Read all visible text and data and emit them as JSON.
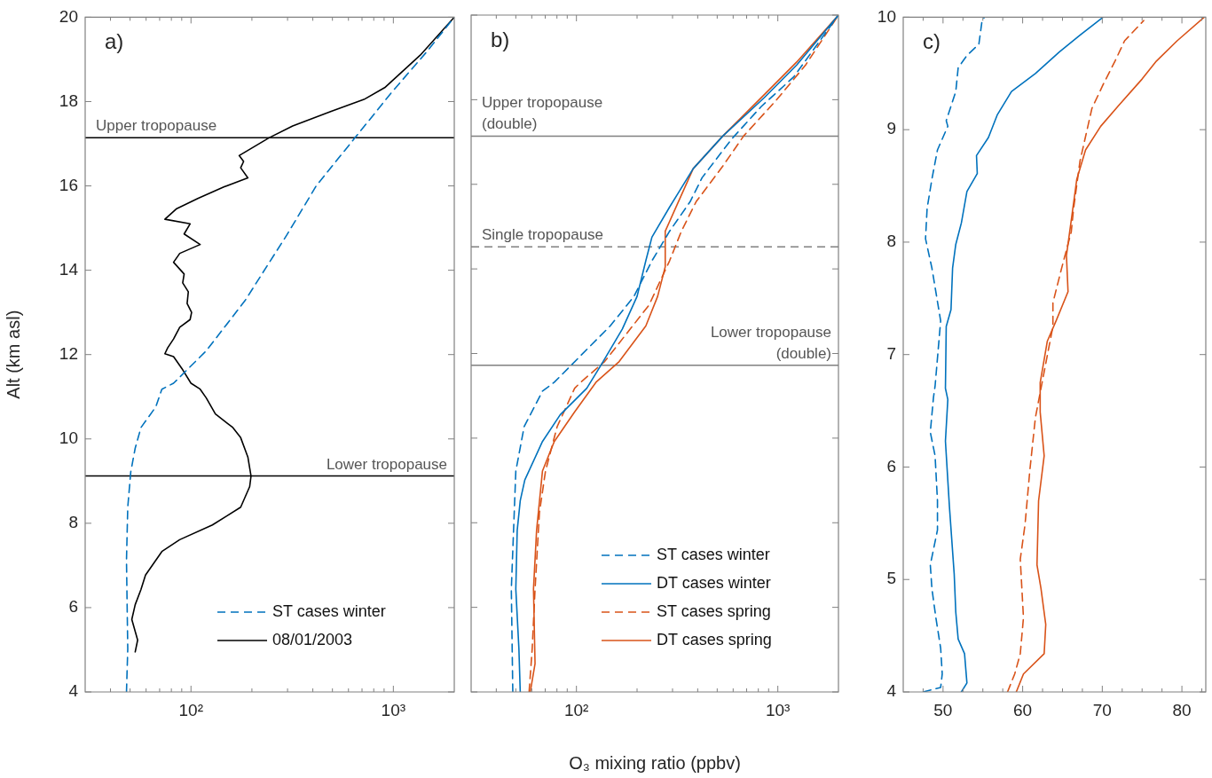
{
  "chart_data": [
    {
      "type": "line",
      "annotations": [
        "a)"
      ],
      "ylabel": "Alt (km asl)",
      "log": "x",
      "legend": "bottom right",
      "xlim": [
        30,
        2000
      ],
      "ylim": [
        4,
        20
      ],
      "xticks": [
        {
          "value": 40,
          "label": null
        },
        {
          "value": 50,
          "label": null
        },
        {
          "value": 60,
          "label": null
        },
        {
          "value": 70,
          "label": null
        },
        {
          "value": 80,
          "label": null
        },
        {
          "value": 90,
          "label": null
        },
        {
          "value": 100,
          "label": "10²"
        },
        {
          "value": 200,
          "label": null
        },
        {
          "value": 300,
          "label": null
        },
        {
          "value": 400,
          "label": null
        },
        {
          "value": 500,
          "label": null
        },
        {
          "value": 600,
          "label": null
        },
        {
          "value": 700,
          "label": null
        },
        {
          "value": 800,
          "label": null
        },
        {
          "value": 900,
          "label": null
        },
        {
          "value": 1000,
          "label": "10³"
        }
      ],
      "yticks": [
        4,
        6,
        8,
        10,
        12,
        14,
        16,
        18,
        20
      ],
      "ref_lines": [
        {
          "axis": "y",
          "value": 17.14,
          "label": "Upper tropopause",
          "color": "#000000",
          "line_style": "solid"
        },
        {
          "axis": "y",
          "value": 9.12,
          "label": "Lower tropopause",
          "color": "#000000",
          "line_style": "solid"
        }
      ],
      "series": [
        {
          "name": "ST cases winter",
          "color": "#0072bd",
          "line_style": "dashed",
          "x": [
            48,
            48.7,
            48,
            48.7,
            50.4,
            53,
            56.6,
            67,
            71.8,
            82,
            119,
            185,
            297,
            417,
            646,
            970,
            1455,
            2000
          ],
          "values": [
            4.0,
            5.02,
            7.12,
            8.38,
            9.22,
            9.78,
            10.27,
            10.76,
            11.18,
            11.32,
            12.09,
            13.28,
            14.83,
            16.01,
            17.14,
            18.19,
            19.17,
            20.0
          ]
        },
        {
          "name": "08/01/2003",
          "color": "#000000",
          "line_style": "solid",
          "x": [
            53,
            54.5,
            51,
            53,
            56.6,
            59.6,
            71.8,
            87.9,
            127.6,
            176,
            195,
            198,
            191,
            176,
            161,
            132,
            119,
            111,
            100,
            91,
            82,
            74.3,
            76.7,
            82,
            88,
            99,
            100.7,
            95.7,
            97,
            91,
            92.5,
            82,
            88,
            111,
            92.5,
            99,
            74.3,
            85,
            108,
            146,
            191,
            176,
            182,
            173,
            243,
            318,
            493,
            716,
            906,
            1358,
            2000
          ],
          "values": [
            4.95,
            5.23,
            5.72,
            6.07,
            6.43,
            6.77,
            7.33,
            7.61,
            7.96,
            8.38,
            8.87,
            9.12,
            9.57,
            10.03,
            10.27,
            10.59,
            10.97,
            11.18,
            11.32,
            11.64,
            11.95,
            12.02,
            12.16,
            12.37,
            12.65,
            12.83,
            13.0,
            13.21,
            13.49,
            13.7,
            13.91,
            14.19,
            14.4,
            14.61,
            14.86,
            15.1,
            15.21,
            15.46,
            15.7,
            15.98,
            16.19,
            16.43,
            16.58,
            16.72,
            17.14,
            17.42,
            17.77,
            18.05,
            18.33,
            19.1,
            20.0
          ]
        }
      ]
    },
    {
      "type": "line",
      "annotations": [
        "b)"
      ],
      "xlabel": "O₃ mixing ratio (ppbv)",
      "log": "x",
      "legend": "bottom right",
      "tick_labels": "x",
      "xlim": [
        30,
        2000
      ],
      "ylim": [
        4,
        20
      ],
      "xticks": [
        {
          "value": 40,
          "label": null
        },
        {
          "value": 50,
          "label": null
        },
        {
          "value": 60,
          "label": null
        },
        {
          "value": 70,
          "label": null
        },
        {
          "value": 80,
          "label": null
        },
        {
          "value": 90,
          "label": null
        },
        {
          "value": 100,
          "label": "10²"
        },
        {
          "value": 200,
          "label": null
        },
        {
          "value": 300,
          "label": null
        },
        {
          "value": 400,
          "label": null
        },
        {
          "value": 500,
          "label": null
        },
        {
          "value": 600,
          "label": null
        },
        {
          "value": 700,
          "label": null
        },
        {
          "value": 800,
          "label": null
        },
        {
          "value": 900,
          "label": null
        },
        {
          "value": 1000,
          "label": "10³"
        }
      ],
      "yticks": [
        4,
        6,
        8,
        10,
        12,
        14,
        16,
        18,
        20
      ],
      "ref_lines": [
        {
          "axis": "y",
          "value": 17.14,
          "label": "Upper tropopause\n(double)",
          "color": "#808080",
          "line_style": "solid"
        },
        {
          "axis": "y",
          "value": 14.52,
          "label": "Single tropopause",
          "color": "#808080",
          "line_style": "dashed"
        },
        {
          "axis": "y",
          "value": 11.72,
          "label": "Lower tropopause\n(double)",
          "color": "#808080",
          "line_style": "solid"
        }
      ],
      "series": [
        {
          "name": "ST cases winter",
          "color": "#0072bd",
          "line_style": "dashed",
          "x": [
            48.3,
            47.5,
            50,
            55,
            67.8,
            77.6,
            105,
            147,
            193,
            237,
            290,
            367,
            421,
            590,
            828,
            1200,
            2000
          ],
          "values": [
            4.0,
            6.43,
            9.22,
            10.27,
            11.11,
            11.32,
            11.95,
            12.65,
            13.35,
            14.19,
            14.89,
            15.59,
            16.16,
            17.07,
            17.84,
            18.54,
            20.0
          ]
        },
        {
          "name": "DT cases winter",
          "color": "#0072bd",
          "line_style": "solid",
          "x": [
            52.6,
            51.8,
            50,
            50.8,
            52.6,
            55.4,
            67.8,
            83,
            112.6,
            133,
            169,
            200,
            221,
            237,
            290,
            380,
            533,
            857,
            1241,
            2000
          ],
          "values": [
            4.0,
            5.02,
            6.43,
            7.82,
            8.52,
            9.01,
            9.92,
            10.55,
            11.18,
            11.74,
            12.58,
            13.35,
            14.19,
            14.75,
            15.46,
            16.37,
            17.14,
            18.05,
            18.82,
            20.0
          ]
        },
        {
          "name": "ST cases spring",
          "color": "#d95319",
          "line_style": "dashed",
          "x": [
            58.2,
            60.3,
            62.3,
            65.5,
            70.2,
            80.2,
            98,
            105,
            138,
            229,
            290,
            332,
            393,
            533,
            676,
            979,
            1374,
            2000
          ],
          "values": [
            4.0,
            5.02,
            6.43,
            8.24,
            9.22,
            10.27,
            11.18,
            11.32,
            11.81,
            13.14,
            14.19,
            14.89,
            15.59,
            16.43,
            17.14,
            17.98,
            18.82,
            20.0
          ]
        },
        {
          "name": "DT cases spring",
          "color": "#d95319",
          "line_style": "solid",
          "x": [
            59,
            62.3,
            61.2,
            63.4,
            67.8,
            77.6,
            98,
            125,
            163,
            221,
            253,
            276,
            276,
            380,
            533,
            857,
            1241,
            2000
          ],
          "values": [
            4.0,
            4.67,
            6.43,
            7.82,
            9.22,
            9.92,
            10.62,
            11.32,
            11.81,
            12.65,
            13.35,
            14.05,
            14.89,
            16.37,
            17.14,
            18.12,
            18.89,
            20.0
          ]
        }
      ]
    },
    {
      "type": "line",
      "annotations": [
        "c)"
      ],
      "xlim": [
        45,
        83
      ],
      "ylim": [
        4,
        10
      ],
      "xticks": [
        {
          "value": 47.5,
          "label": null
        },
        50,
        {
          "value": 52.5,
          "label": null
        },
        {
          "value": 55,
          "label": null
        },
        {
          "value": 57.5,
          "label": null
        },
        60,
        {
          "value": 62.5,
          "label": null
        },
        {
          "value": 65,
          "label": null
        },
        {
          "value": 67.5,
          "label": null
        },
        70,
        {
          "value": 72.5,
          "label": null
        },
        {
          "value": 75,
          "label": null
        },
        {
          "value": 77.5,
          "label": null
        },
        80,
        {
          "value": 82.5,
          "label": null
        }
      ],
      "yticks": [
        4,
        5,
        6,
        7,
        8,
        9,
        10
      ],
      "series": [
        {
          "color": "#0072bd",
          "line_style": "dashed",
          "x": [
            47.5,
            49.7,
            49.9,
            49.7,
            49.1,
            48.6,
            48.4,
            49.3,
            49.3,
            49.0,
            48.4,
            48.8,
            49.0,
            49.7,
            48.6,
            47.8,
            48.0,
            48.6,
            49.3,
            50.6,
            50.4,
            51.6,
            51.9,
            53.0,
            54.5,
            54.9,
            55.2
          ],
          "values": [
            4.0,
            4.04,
            4.16,
            4.39,
            4.66,
            4.92,
            5.13,
            5.44,
            5.7,
            6.1,
            6.31,
            6.62,
            6.72,
            7.3,
            7.77,
            8.03,
            8.3,
            8.56,
            8.82,
            9.03,
            9.08,
            9.34,
            9.55,
            9.66,
            9.76,
            9.97,
            10.0
          ]
        },
        {
          "color": "#0072bd",
          "line_style": "solid",
          "x": [
            52.3,
            53.0,
            52.7,
            51.9,
            51.6,
            51.4,
            50.8,
            50.3,
            50.6,
            50.3,
            50.4,
            51.0,
            51.2,
            51.6,
            52.3,
            53.0,
            54.3,
            54.2,
            55.7,
            56.8,
            58.6,
            61.6,
            64.6,
            67.2,
            70.1
          ],
          "values": [
            4.0,
            4.08,
            4.34,
            4.47,
            4.71,
            5.05,
            5.65,
            6.23,
            6.6,
            6.7,
            7.25,
            7.4,
            7.77,
            7.98,
            8.17,
            8.45,
            8.61,
            8.77,
            8.93,
            9.13,
            9.34,
            9.5,
            9.69,
            9.84,
            10.0
          ]
        },
        {
          "color": "#d95319",
          "line_style": "dashed",
          "x": [
            58.1,
            59.0,
            59.7,
            60.1,
            59.7,
            60.3,
            60.9,
            61.6,
            62.3,
            63.8,
            63.8,
            64.9,
            66.1,
            66.4,
            67.2,
            68.7,
            70.1,
            71.6,
            72.8,
            75.2
          ],
          "values": [
            4.0,
            4.16,
            4.34,
            4.66,
            5.18,
            5.49,
            5.97,
            6.44,
            6.7,
            7.25,
            7.46,
            7.77,
            8.09,
            8.3,
            8.72,
            9.19,
            9.4,
            9.61,
            9.79,
            9.97
          ]
        },
        {
          "color": "#d95319",
          "line_style": "solid",
          "x": [
            59.2,
            60.1,
            62.7,
            62.9,
            62.3,
            61.8,
            62.0,
            62.7,
            62.2,
            62.2,
            63.1,
            64.2,
            65.7,
            65.5,
            66.4,
            66.8,
            67.9,
            69.8,
            72.0,
            75.0,
            76.8,
            79.4,
            82.8
          ],
          "values": [
            4.0,
            4.16,
            4.34,
            4.6,
            4.92,
            5.13,
            5.7,
            6.1,
            6.49,
            6.75,
            7.12,
            7.3,
            7.56,
            7.88,
            8.35,
            8.56,
            8.82,
            9.03,
            9.21,
            9.45,
            9.61,
            9.79,
            10.0
          ]
        }
      ]
    }
  ]
}
